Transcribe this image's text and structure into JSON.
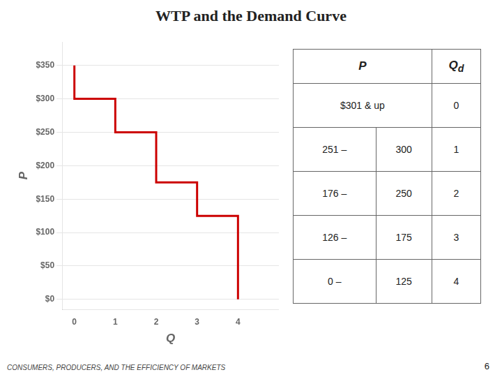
{
  "chart_data": {
    "type": "line",
    "title": "WTP and the Demand Curve",
    "x_label": "Q",
    "y_label": "P",
    "x": [
      0,
      0,
      1,
      1,
      2,
      2,
      3,
      3,
      4,
      4
    ],
    "values": [
      350,
      300,
      300,
      250,
      250,
      175,
      175,
      125,
      125,
      0
    ],
    "color": "#cc0000",
    "xlim": [
      -0.3,
      5.0
    ],
    "xticks": [
      0,
      1,
      2,
      3,
      4
    ],
    "ylim": [
      -15,
      385
    ],
    "yticks": [
      {
        "value": 0,
        "label": "$0"
      },
      {
        "value": 50,
        "label": "$50"
      },
      {
        "value": 100,
        "label": "$100"
      },
      {
        "value": 150,
        "label": "$150"
      },
      {
        "value": 200,
        "label": "$200"
      },
      {
        "value": 250,
        "label": "$250"
      },
      {
        "value": 300,
        "label": "$300"
      },
      {
        "value": 350,
        "label": "$350"
      }
    ],
    "grid": "y",
    "legend": false,
    "table": {
      "columns": [
        "P",
        "Qd"
      ],
      "rows": [
        {
          "p": [
            "$301 & up"
          ],
          "qd": "0"
        },
        {
          "p": [
            "251 –",
            "300"
          ],
          "qd": "1"
        },
        {
          "p": [
            "176 –",
            "250"
          ],
          "qd": "2"
        },
        {
          "p": [
            "126 –",
            "175"
          ],
          "qd": "3"
        },
        {
          "p": [
            "0 –",
            "125"
          ],
          "qd": "4"
        }
      ]
    },
    "footer": {
      "text": "CONSUMERS, PRODUCERS, AND THE EFFICIENCY OF MARKETS",
      "page": "6"
    }
  }
}
